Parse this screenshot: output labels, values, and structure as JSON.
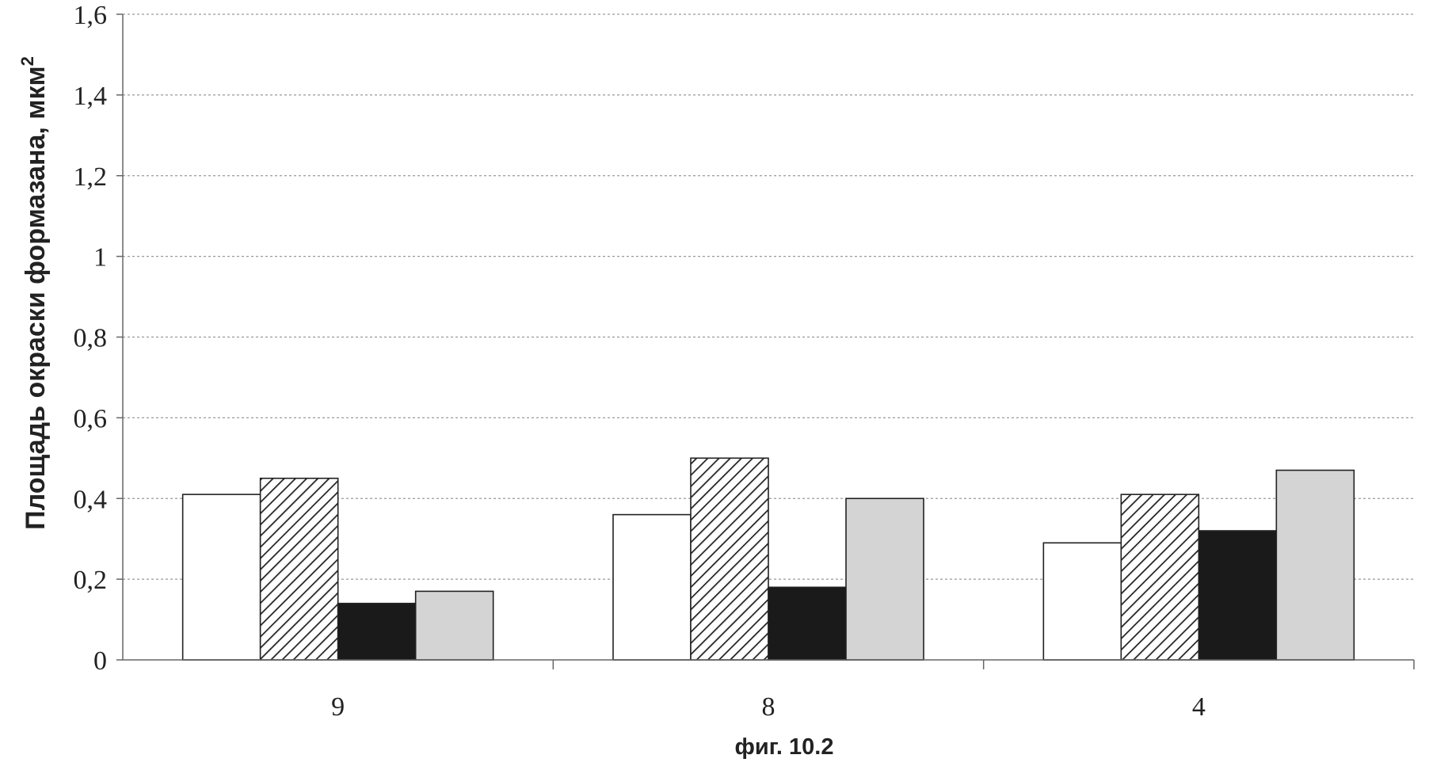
{
  "chart_data": {
    "type": "bar",
    "title": "",
    "xlabel": "",
    "ylabel": "Площадь окраски формазана, мкм",
    "ylabel_sup": "2",
    "caption": "фиг. 10.2",
    "categories": [
      "9",
      "8",
      "4"
    ],
    "ylim": [
      0,
      1.6
    ],
    "yticks": [
      0,
      0.2,
      0.4,
      0.6,
      0.8,
      1,
      1.2,
      1.4,
      1.6
    ],
    "ytick_labels": [
      "0",
      "0,2",
      "0,4",
      "0,6",
      "0,8",
      "1",
      "1,2",
      "1,4",
      "1,6"
    ],
    "grid": true,
    "legend": "none",
    "series": [
      {
        "fill": "white",
        "values": [
          0.41,
          0.36,
          0.29
        ]
      },
      {
        "fill": "diagonal-hatch",
        "values": [
          0.45,
          0.5,
          0.41
        ]
      },
      {
        "fill": "black",
        "values": [
          0.14,
          0.18,
          0.32
        ]
      },
      {
        "fill": "light-gray",
        "values": [
          0.17,
          0.4,
          0.47
        ]
      }
    ],
    "colors": {
      "bar_outline": "#222222",
      "black_fill": "#1a1a1a",
      "gray_fill": "#d4d4d4",
      "hatch_line": "#222222",
      "grid": "#999999",
      "axis": "#666666"
    }
  }
}
